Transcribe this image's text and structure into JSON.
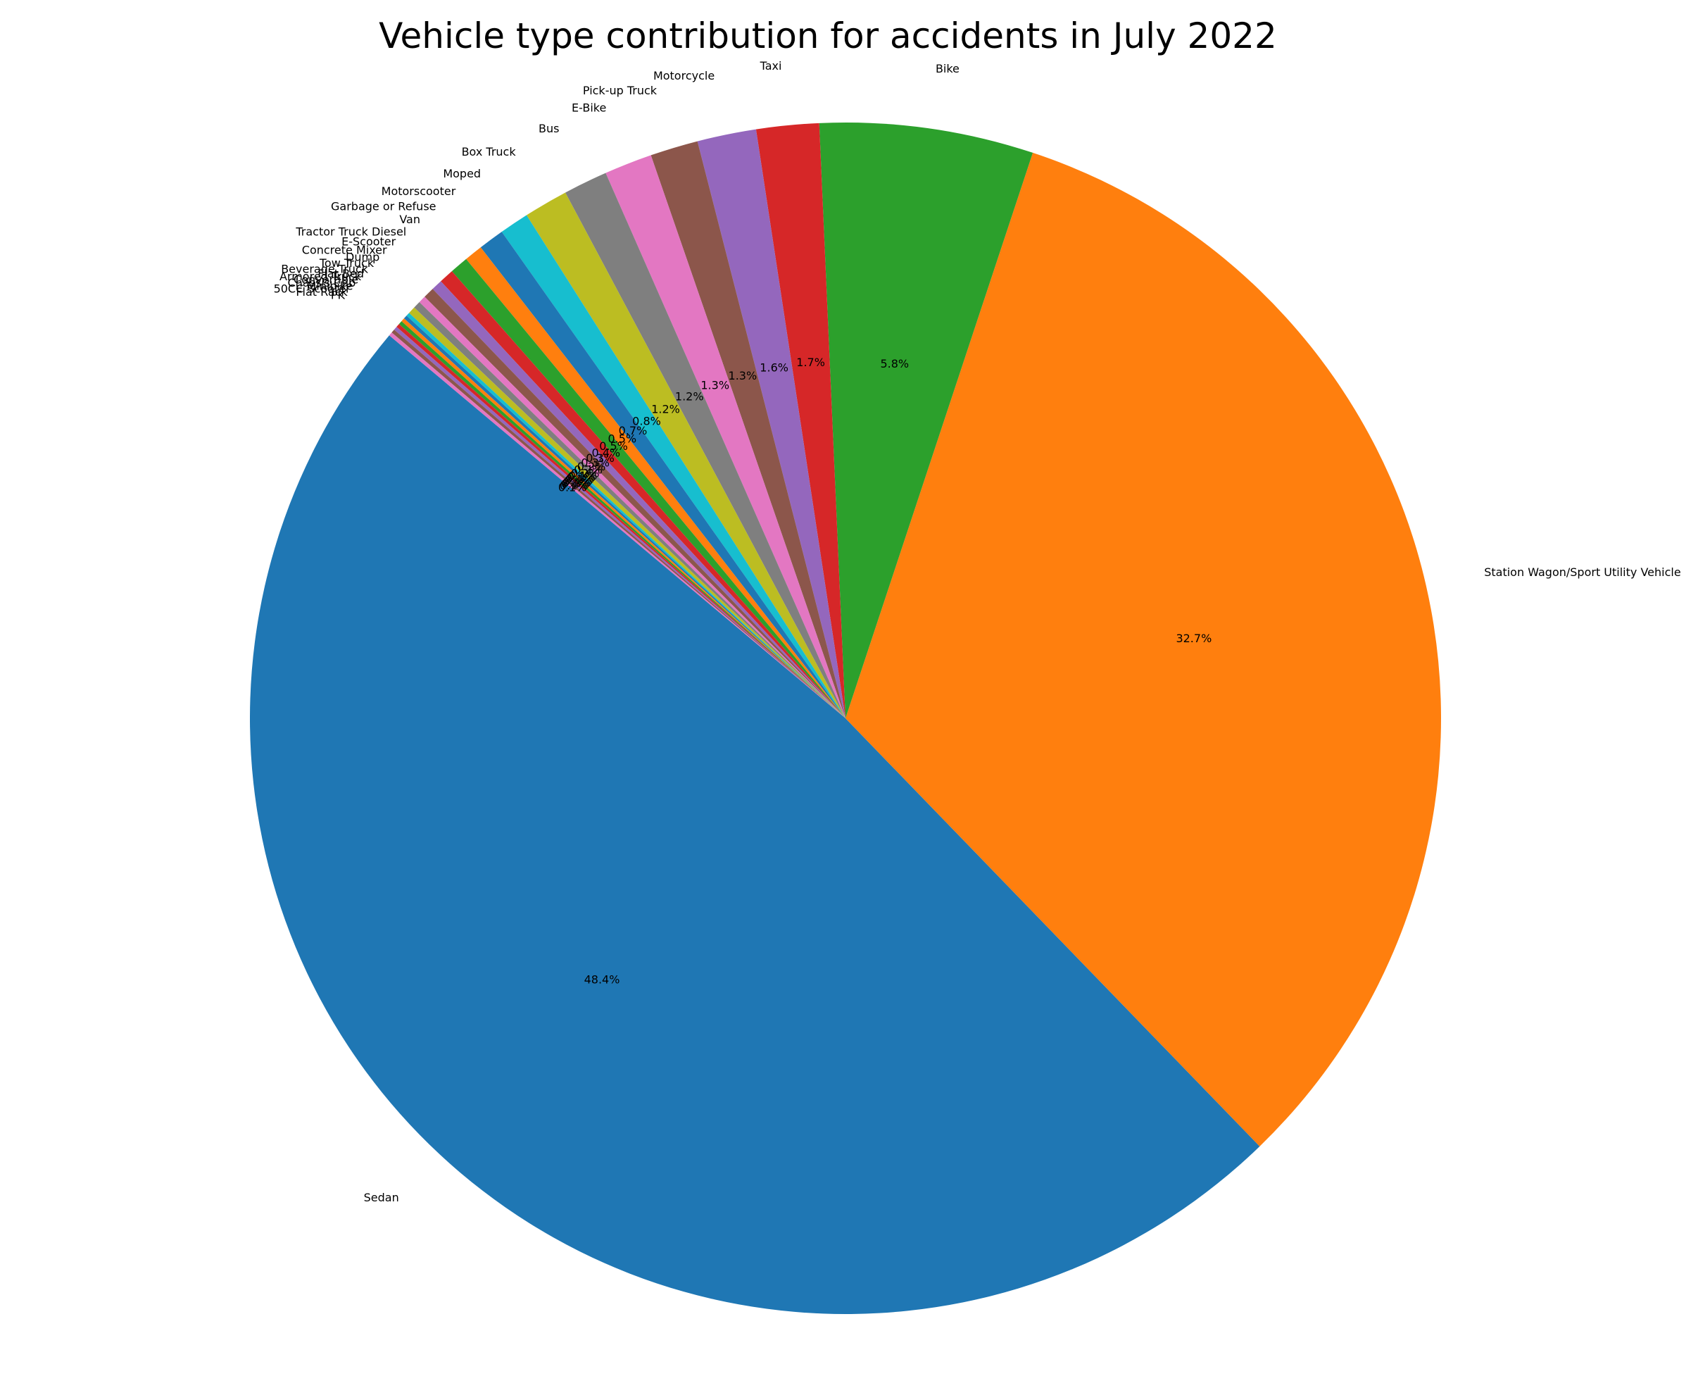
{
  "chart_data": {
    "type": "pie",
    "title": "Vehicle type contribution for accidents in July 2022",
    "start_angle_deg": 140,
    "direction": "counterclockwise",
    "slices": [
      {
        "label": "Sedan",
        "value": 48.4,
        "pct_label": "48.4%",
        "color": "#1f77b4"
      },
      {
        "label": "Station Wagon/Sport Utility Vehicle",
        "value": 32.7,
        "pct_label": "32.7%",
        "color": "#ff7f0e"
      },
      {
        "label": "Bike",
        "value": 5.8,
        "pct_label": "5.8%",
        "color": "#2ca02c"
      },
      {
        "label": "Taxi",
        "value": 1.7,
        "pct_label": "1.7%",
        "color": "#d62728"
      },
      {
        "label": "Motorcycle",
        "value": 1.6,
        "pct_label": "1.6%",
        "color": "#9467bd"
      },
      {
        "label": "Pick-up Truck",
        "value": 1.3,
        "pct_label": "1.3%",
        "color": "#8c564b"
      },
      {
        "label": "E-Bike",
        "value": 1.3,
        "pct_label": "1.3%",
        "color": "#e377c2"
      },
      {
        "label": "Bus",
        "value": 1.2,
        "pct_label": "1.2%",
        "color": "#7f7f7f"
      },
      {
        "label": "Box Truck",
        "value": 1.2,
        "pct_label": "1.2%",
        "color": "#bcbd22"
      },
      {
        "label": "Moped",
        "value": 0.8,
        "pct_label": "0.8%",
        "color": "#17becf"
      },
      {
        "label": "Motorscooter",
        "value": 0.7,
        "pct_label": "0.7%",
        "color": "#1f77b4"
      },
      {
        "label": "Garbage or Refuse",
        "value": 0.5,
        "pct_label": "0.5%",
        "color": "#ff7f0e"
      },
      {
        "label": "Van",
        "value": 0.5,
        "pct_label": "0.5%",
        "color": "#2ca02c"
      },
      {
        "label": "Tractor Truck Diesel",
        "value": 0.4,
        "pct_label": "0.4%",
        "color": "#d62728"
      },
      {
        "label": "E-Scooter",
        "value": 0.3,
        "pct_label": "0.3%",
        "color": "#9467bd"
      },
      {
        "label": "Concrete Mixer",
        "value": 0.3,
        "pct_label": "0.3%",
        "color": "#8c564b"
      },
      {
        "label": "Dump",
        "value": 0.2,
        "pct_label": "0.2%",
        "color": "#e377c2"
      },
      {
        "label": "Tow Truck",
        "value": 0.2,
        "pct_label": "0.2%",
        "color": "#7f7f7f"
      },
      {
        "label": "Beverage Truck",
        "value": 0.2,
        "pct_label": "0.2%",
        "color": "#bcbd22"
      },
      {
        "label": "Flat Bed",
        "value": 0.1,
        "pct_label": "0.1%",
        "color": "#17becf"
      },
      {
        "label": "Armored Truck",
        "value": 0.1,
        "pct_label": "0.1%",
        "color": "#1f77b4"
      },
      {
        "label": "Convertible",
        "value": 0.1,
        "pct_label": "0.1%",
        "color": "#ff7f0e"
      },
      {
        "label": "Chassis Cab",
        "value": 0.1,
        "pct_label": "0.1%",
        "color": "#2ca02c"
      },
      {
        "label": "Minibike",
        "value": 0.1,
        "pct_label": "0.1%",
        "color": "#d62728"
      },
      {
        "label": "50CC Scooter",
        "value": 0.1,
        "pct_label": "0.1%",
        "color": "#9467bd"
      },
      {
        "label": "Flat Rack",
        "value": 0.1,
        "pct_label": "0.1%",
        "color": "#8c564b"
      },
      {
        "label": "PK",
        "value": 0.1,
        "pct_label": "0.1%",
        "color": "#e377c2"
      }
    ]
  }
}
